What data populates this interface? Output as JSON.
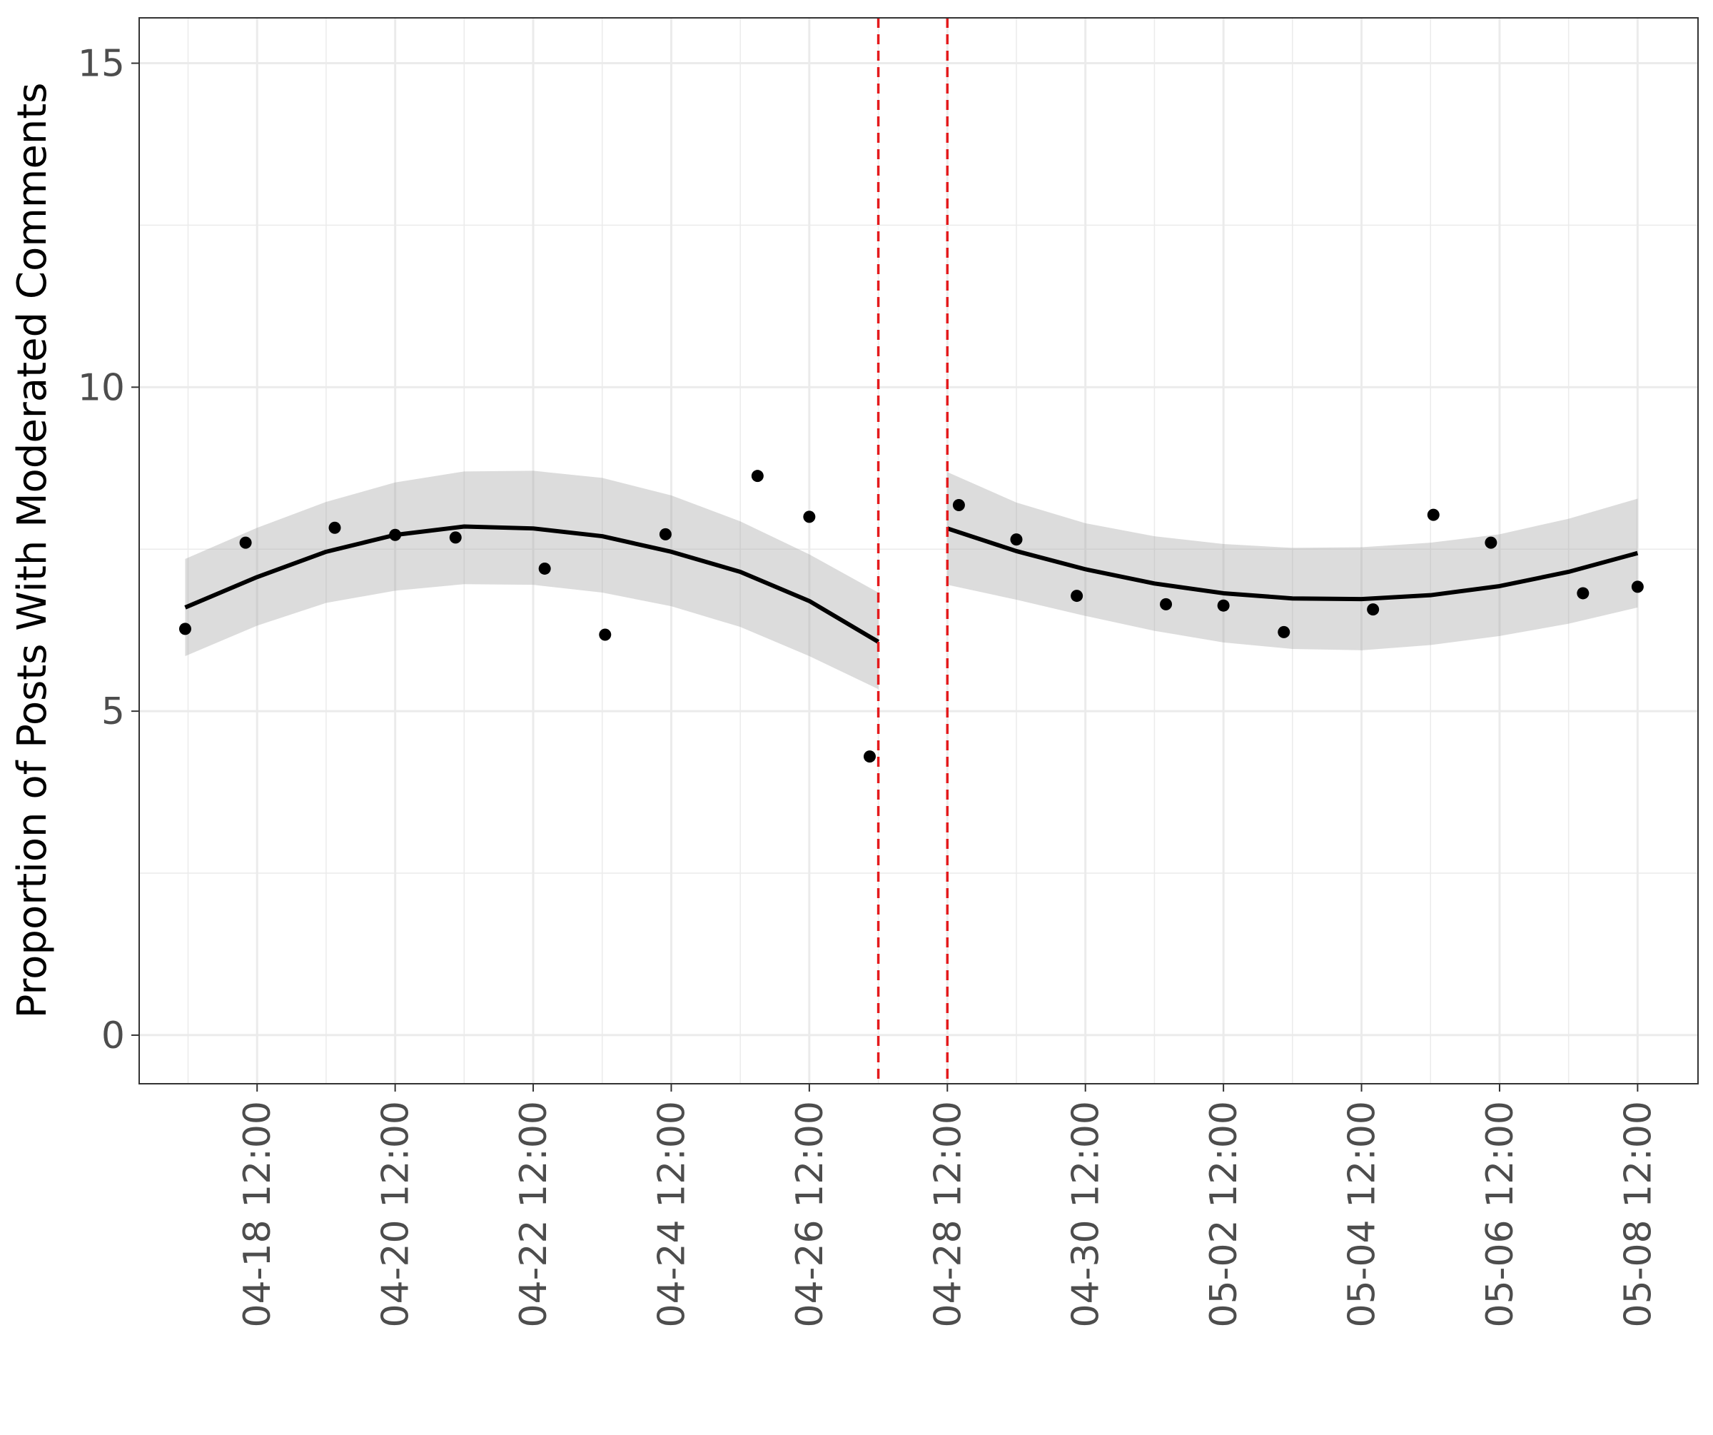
{
  "chart_data": {
    "type": "scatter",
    "title": "",
    "xlabel": "",
    "ylabel": "Proportion of Posts With Moderated Comments",
    "ylim": [
      -0.75,
      15.7
    ],
    "xlim": [
      "2024-04-16T19:00",
      "2024-05-09T09:00"
    ],
    "y_ticks": [
      0,
      5,
      10,
      15
    ],
    "x_ticks": [
      "2024-04-18T12:00",
      "2024-04-20T12:00",
      "2024-04-22T12:00",
      "2024-04-24T12:00",
      "2024-04-26T12:00",
      "2024-04-28T12:00",
      "2024-04-30T12:00",
      "2024-05-02T12:00",
      "2024-05-04T12:00",
      "2024-05-06T12:00",
      "2024-05-08T12:00"
    ],
    "x_tick_labels": [
      "04-18 12:00",
      "04-20 12:00",
      "04-22 12:00",
      "04-24 12:00",
      "04-26 12:00",
      "04-28 12:00",
      "04-30 12:00",
      "05-02 12:00",
      "05-04 12:00",
      "05-06 12:00",
      "05-08 12:00"
    ],
    "grid": true,
    "vlines": [
      {
        "x": "2024-04-27T12:00",
        "color": "#e41a1c",
        "style": "dashed"
      },
      {
        "x": "2024-04-28T12:00",
        "color": "#e41a1c",
        "style": "dashed"
      }
    ],
    "points": [
      {
        "x": "2024-04-17T11:00",
        "y": 6.27
      },
      {
        "x": "2024-04-18T08:00",
        "y": 7.6
      },
      {
        "x": "2024-04-19T15:00",
        "y": 7.83
      },
      {
        "x": "2024-04-20T12:00",
        "y": 7.72
      },
      {
        "x": "2024-04-21T09:00",
        "y": 7.68
      },
      {
        "x": "2024-04-22T16:00",
        "y": 7.2
      },
      {
        "x": "2024-04-23T13:00",
        "y": 6.18
      },
      {
        "x": "2024-04-24T10:00",
        "y": 7.73
      },
      {
        "x": "2024-04-25T18:00",
        "y": 8.63
      },
      {
        "x": "2024-04-26T12:00",
        "y": 8.0
      },
      {
        "x": "2024-04-27T09:00",
        "y": 4.3
      },
      {
        "x": "2024-04-28T16:00",
        "y": 8.18
      },
      {
        "x": "2024-04-29T12:00",
        "y": 7.65
      },
      {
        "x": "2024-04-30T09:00",
        "y": 6.78
      },
      {
        "x": "2024-05-01T16:00",
        "y": 6.65
      },
      {
        "x": "2024-05-02T12:00",
        "y": 6.63
      },
      {
        "x": "2024-05-03T09:00",
        "y": 6.22
      },
      {
        "x": "2024-05-04T16:00",
        "y": 6.57
      },
      {
        "x": "2024-05-05T13:00",
        "y": 8.03
      },
      {
        "x": "2024-05-06T09:00",
        "y": 7.6
      },
      {
        "x": "2024-05-07T17:00",
        "y": 6.82
      },
      {
        "x": "2024-05-08T12:00",
        "y": 6.92
      }
    ],
    "fits": [
      {
        "segment": "before",
        "x": [
          "2024-04-17T11:00",
          "2024-04-18T12:00",
          "2024-04-19T12:00",
          "2024-04-20T12:00",
          "2024-04-21T12:00",
          "2024-04-22T12:00",
          "2024-04-23T12:00",
          "2024-04-24T12:00",
          "2024-04-25T12:00",
          "2024-04-26T12:00",
          "2024-04-27T12:00"
        ],
        "y": [
          6.6,
          7.07,
          7.46,
          7.72,
          7.85,
          7.82,
          7.7,
          7.46,
          7.15,
          6.7,
          6.07
        ],
        "lower": [
          5.85,
          6.32,
          6.67,
          6.86,
          6.96,
          6.95,
          6.83,
          6.62,
          6.3,
          5.85,
          5.34
        ],
        "upper": [
          7.35,
          7.83,
          8.23,
          8.53,
          8.7,
          8.71,
          8.6,
          8.33,
          7.93,
          7.42,
          6.83
        ]
      },
      {
        "segment": "after",
        "x": [
          "2024-04-28T12:00",
          "2024-04-29T12:00",
          "2024-04-30T12:00",
          "2024-05-01T12:00",
          "2024-05-02T12:00",
          "2024-05-03T12:00",
          "2024-05-04T12:00",
          "2024-05-05T12:00",
          "2024-05-06T12:00",
          "2024-05-07T12:00",
          "2024-05-08T12:00"
        ],
        "y": [
          7.82,
          7.47,
          7.19,
          6.97,
          6.82,
          6.74,
          6.73,
          6.79,
          6.93,
          7.15,
          7.44
        ],
        "lower": [
          6.95,
          6.72,
          6.47,
          6.24,
          6.06,
          5.96,
          5.94,
          6.02,
          6.16,
          6.35,
          6.6
        ],
        "upper": [
          8.69,
          8.22,
          7.9,
          7.7,
          7.58,
          7.52,
          7.53,
          7.6,
          7.73,
          7.97,
          8.28
        ]
      }
    ]
  }
}
